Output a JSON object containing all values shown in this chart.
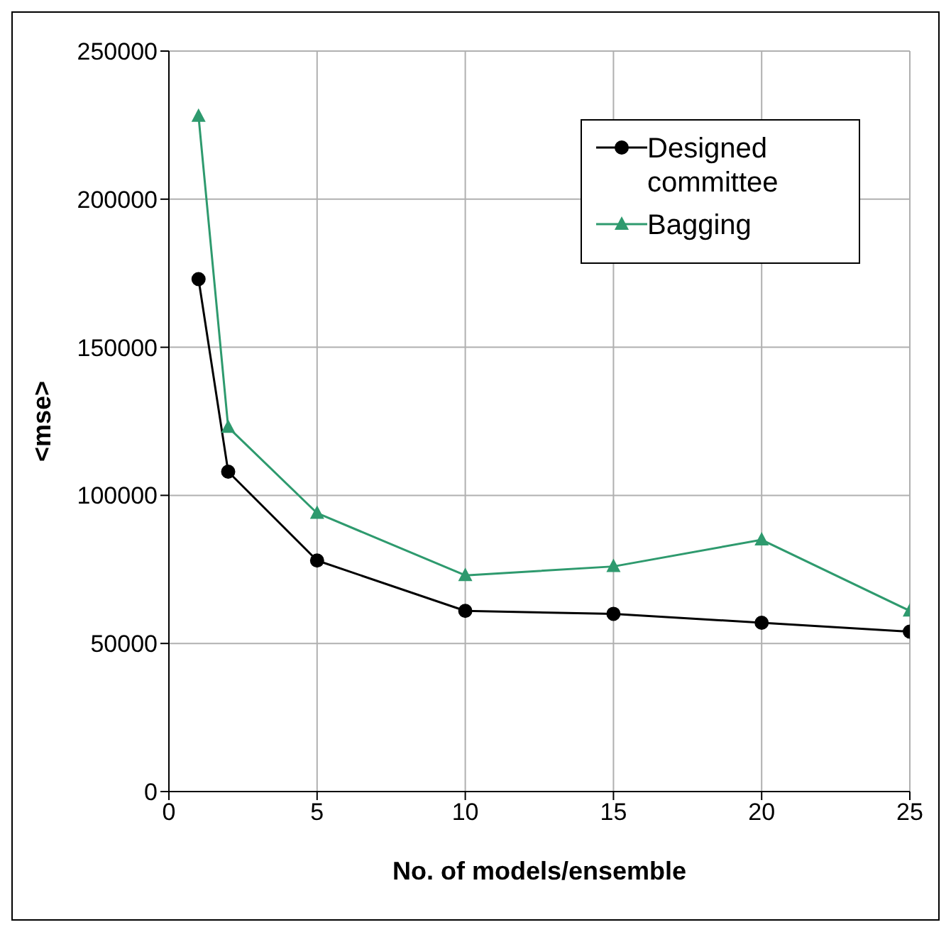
{
  "chart_data": {
    "type": "line",
    "xlabel": "No. of models/ensemble",
    "ylabel": "<mse>",
    "xlim": [
      0,
      25
    ],
    "xticks": [
      0,
      5,
      10,
      15,
      20,
      25
    ],
    "ylim": [
      0,
      250000
    ],
    "yticks": [
      0,
      50000,
      100000,
      150000,
      200000,
      250000
    ],
    "grid": true,
    "legend": "top right",
    "line_style": "solid",
    "series": [
      {
        "name": "Designed committee",
        "color": "#000000",
        "marker": "circle",
        "x": [
          1,
          2,
          5,
          10,
          15,
          20,
          25
        ],
        "values": [
          173000,
          108000,
          78000,
          61000,
          60000,
          57000,
          54000
        ]
      },
      {
        "name": "Bagging",
        "color": "#2e9a6e",
        "marker": "triangle",
        "x": [
          1,
          2,
          5,
          10,
          15,
          20,
          25
        ],
        "values": [
          228000,
          123000,
          94000,
          73000,
          76000,
          85000,
          61000
        ]
      }
    ]
  }
}
